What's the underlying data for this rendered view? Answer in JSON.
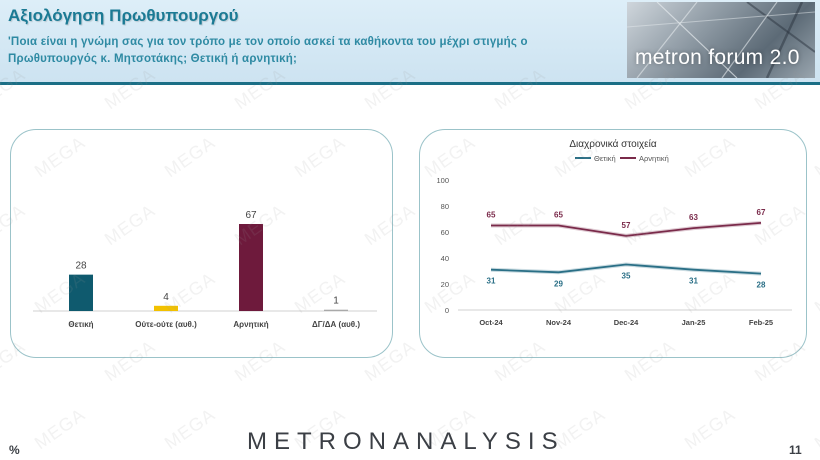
{
  "header": {
    "title": "Αξιολόγηση Πρωθυπουργού",
    "question": "'Ποια είναι η γνώμη σας για τον τρόπο με τον οποίο ασκεί τα καθήκοντα του μέχρι στιγμής ο Πρωθυπουργός κ. Μητσοτάκης; Θετική ή αρνητική;",
    "logo_text": "metron forum 2.0"
  },
  "footer": {
    "brand": "METRONANALYSIS",
    "unit": "%",
    "page_number": "11"
  },
  "watermark": {
    "text": "MEGA"
  },
  "colors": {
    "positive": "#0f5a6e",
    "neutral": "#f2c100",
    "negative": "#6e1a3c",
    "dk": "#a9a9a9"
  },
  "chart_data": [
    {
      "type": "bar",
      "title": "",
      "categories": [
        "Θετική",
        "Ούτε-ούτε (αυθ.)",
        "Αρνητική",
        "ΔΓ/ΔΑ (αυθ.)"
      ],
      "values": [
        28,
        4,
        67,
        1
      ],
      "bar_colors": [
        "#0f5a6e",
        "#f2c100",
        "#6e1a3c",
        "#a9a9a9"
      ],
      "ylim": [
        0,
        67
      ],
      "grid": false
    },
    {
      "type": "line",
      "title": "Διαχρονικά στοιχεία",
      "x": [
        "Oct-24",
        "Nov-24",
        "Dec-24",
        "Jan-25",
        "Feb-25"
      ],
      "series": [
        {
          "name": "Θετική",
          "color": "#2a6f86",
          "values": [
            31,
            29,
            35,
            31,
            28
          ]
        },
        {
          "name": "Αρνητική",
          "color": "#7a2a4a",
          "values": [
            65,
            65,
            57,
            63,
            67
          ]
        }
      ],
      "ylim": [
        0,
        100
      ],
      "yticks": [
        0,
        20,
        40,
        60,
        80,
        100
      ],
      "legend": "top-center",
      "grid": false
    }
  ]
}
